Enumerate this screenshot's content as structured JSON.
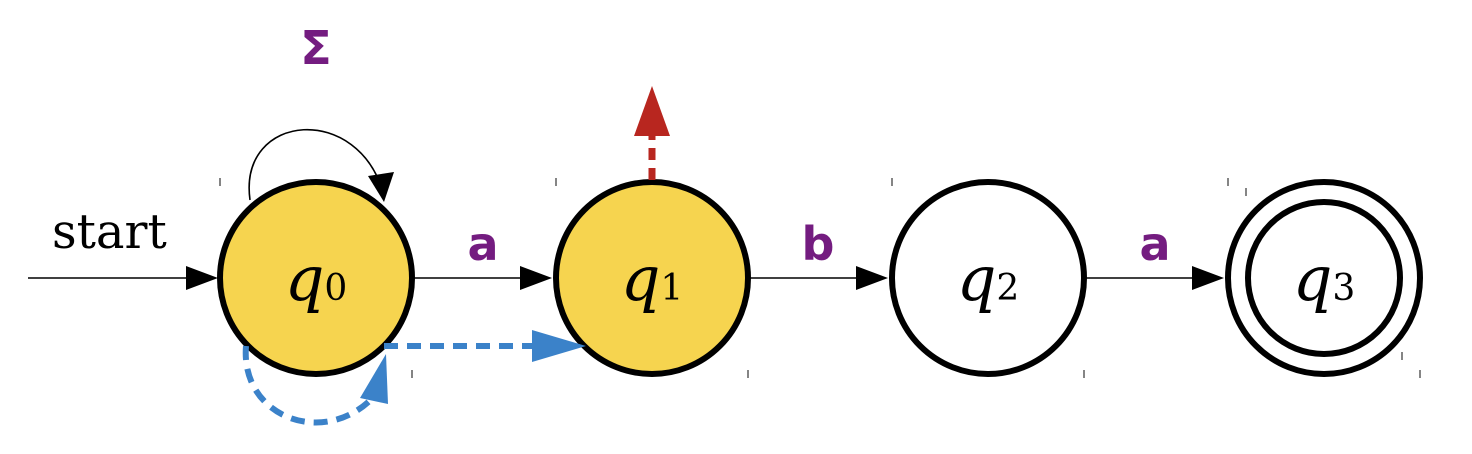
{
  "start_label": "start",
  "self_loop_label": "Σ",
  "states": [
    {
      "id": "q0",
      "name": "q",
      "sub": "0",
      "active": true,
      "accepting": false
    },
    {
      "id": "q1",
      "name": "q",
      "sub": "1",
      "active": true,
      "accepting": false
    },
    {
      "id": "q2",
      "name": "q",
      "sub": "2",
      "active": false,
      "accepting": false
    },
    {
      "id": "q3",
      "name": "q",
      "sub": "3",
      "active": false,
      "accepting": true
    }
  ],
  "transitions": [
    {
      "from": "q0",
      "to": "q0",
      "label": "Σ"
    },
    {
      "from": "q0",
      "to": "q1",
      "label": "a"
    },
    {
      "from": "q1",
      "to": "q2",
      "label": "b"
    },
    {
      "from": "q2",
      "to": "q3",
      "label": "a"
    }
  ],
  "colors": {
    "active_fill": "#f6d44f",
    "label_purple": "#741c80",
    "blue_dashed": "#3b82c9",
    "red_dashed": "#b8261f",
    "stroke": "#000000"
  }
}
